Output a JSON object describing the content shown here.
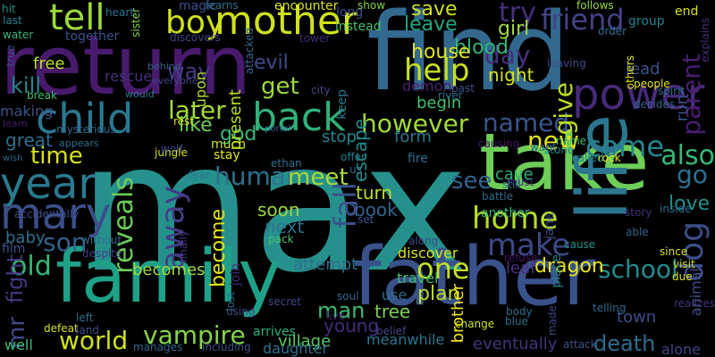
{
  "words": [
    {
      "text": "max",
      "c": "#26918c"
    },
    {
      "text": "find",
      "c": "#33698e"
    },
    {
      "text": "return",
      "c": "#481a6c"
    },
    {
      "text": "family",
      "c": "#1fa187"
    },
    {
      "text": "father",
      "c": "#3a528b"
    },
    {
      "text": "take",
      "c": "#6ece58"
    },
    {
      "text": "life",
      "c": "#2b768e"
    },
    {
      "text": "mother",
      "c": "#cfe11c"
    },
    {
      "text": "child",
      "c": "#2a788e"
    },
    {
      "text": "back",
      "c": "#30b07a"
    },
    {
      "text": "power",
      "c": "#472b7a"
    },
    {
      "text": "year",
      "c": "#2a798e"
    },
    {
      "text": "mary",
      "c": "#3c4f8a"
    },
    {
      "text": "tell",
      "c": "#9cd93b"
    },
    {
      "text": "boy",
      "c": "#cfe11c"
    },
    {
      "text": "friend",
      "c": "#414487"
    },
    {
      "text": "home",
      "c": "#b5de2b"
    },
    {
      "text": "make",
      "c": "#3e4989"
    },
    {
      "text": "dog",
      "c": "#3d4d8a"
    },
    {
      "text": "time",
      "c": "#d8e219"
    },
    {
      "text": "human",
      "c": "#2d708e"
    },
    {
      "text": "reveals",
      "c": "#6ccd5a"
    },
    {
      "text": "away",
      "c": "#433e85"
    },
    {
      "text": "son",
      "c": "#34608d"
    },
    {
      "text": "old",
      "c": "#35b779"
    },
    {
      "text": "world",
      "c": "#d0e11c"
    },
    {
      "text": "vampire",
      "c": "#86d549"
    },
    {
      "text": "named",
      "c": "#39558c"
    },
    {
      "text": "new",
      "c": "#e5e419"
    },
    {
      "text": "come",
      "c": "#25848e"
    },
    {
      "text": "also",
      "c": "#37b878"
    },
    {
      "text": "go",
      "c": "#2c718e"
    },
    {
      "text": "give",
      "c": "#bade28"
    },
    {
      "text": "get",
      "c": "#9dd93b"
    },
    {
      "text": "help",
      "c": "#c8e020"
    },
    {
      "text": "later",
      "c": "#a5db36"
    },
    {
      "text": "however",
      "c": "#a2da37"
    },
    {
      "text": "meet",
      "c": "#a8db34"
    },
    {
      "text": "fall",
      "c": "#3b518b"
    },
    {
      "text": "one",
      "c": "#c2df23"
    },
    {
      "text": "school",
      "c": "#228c8d"
    },
    {
      "text": "see",
      "c": "#32648e"
    },
    {
      "text": "parent",
      "c": "#481f70"
    },
    {
      "text": "love",
      "c": "#21918c"
    },
    {
      "text": "day",
      "c": "#472e7c"
    },
    {
      "text": "kill",
      "c": "#24868e"
    },
    {
      "text": "fight",
      "c": "#443a83"
    },
    {
      "text": "mr",
      "c": "#3f4788"
    },
    {
      "text": "become",
      "c": "#e2e418"
    },
    {
      "text": "becomes",
      "c": "#a0da39"
    },
    {
      "text": "attempt",
      "c": "#2e6e8e"
    },
    {
      "text": "turn",
      "c": "#bddf26"
    },
    {
      "text": "way",
      "c": "#433d84"
    },
    {
      "text": "god",
      "c": "#35b779"
    },
    {
      "text": "like",
      "c": "#6ccd5a"
    },
    {
      "text": "try",
      "c": "#472f7d"
    },
    {
      "text": "save",
      "c": "#cde11d"
    },
    {
      "text": "leave",
      "c": "#22a884"
    },
    {
      "text": "blood",
      "c": "#32b67a"
    },
    {
      "text": "girl",
      "c": "#a0da39"
    },
    {
      "text": "house",
      "c": "#e2e418"
    },
    {
      "text": "night",
      "c": "#d5e21a"
    },
    {
      "text": "evil",
      "c": "#3e4c8a"
    },
    {
      "text": "free",
      "c": "#c0df25"
    },
    {
      "text": "begin",
      "c": "#44bf70"
    },
    {
      "text": "demon",
      "c": "#482173"
    },
    {
      "text": "soon",
      "c": "#9dd93b"
    },
    {
      "text": "next",
      "c": "#2d718e"
    },
    {
      "text": "book",
      "c": "#33628d"
    },
    {
      "text": "man",
      "c": "#3fbc73"
    },
    {
      "text": "young",
      "c": "#472c7a"
    },
    {
      "text": "plan",
      "c": "#c0df25"
    },
    {
      "text": "brother",
      "c": "#f1e51d"
    },
    {
      "text": "village",
      "c": "#5cc863"
    },
    {
      "text": "meanwhile",
      "c": "#2a788e"
    },
    {
      "text": "eventually",
      "c": "#45337d"
    },
    {
      "text": "death",
      "c": "#2e6d8e"
    },
    {
      "text": "dragon",
      "c": "#e7e419"
    },
    {
      "text": "town",
      "c": "#3d4e8a"
    },
    {
      "text": "use",
      "c": "#2f6c8e"
    },
    {
      "text": "tree",
      "c": "#7ad151"
    },
    {
      "text": "leaf",
      "c": "#4e2d84"
    },
    {
      "text": "escape",
      "c": "#228c8d"
    },
    {
      "text": "stop",
      "c": "#24868e"
    },
    {
      "text": "form",
      "c": "#2a788e"
    },
    {
      "text": "cave",
      "c": "#29af7f"
    },
    {
      "text": "great",
      "c": "#2e6f8e"
    },
    {
      "text": "baby",
      "c": "#2d718e"
    },
    {
      "text": "rescue",
      "c": "#46327e"
    },
    {
      "text": "lead",
      "c": "#3b528b"
    },
    {
      "text": "present",
      "c": "#b8de29"
    },
    {
      "text": "upon",
      "c": "#b2dd2d"
    },
    {
      "text": "magic",
      "c": "#3b528b"
    },
    {
      "text": "heart",
      "c": "#2c728e"
    },
    {
      "text": "learns",
      "c": "#2d708e"
    },
    {
      "text": "encounter",
      "c": "#d8e219"
    },
    {
      "text": "show",
      "c": "#7fd34e"
    },
    {
      "text": "long",
      "c": "#3e4a89"
    },
    {
      "text": "instead",
      "c": "#4ac16d"
    },
    {
      "text": "follows",
      "c": "#95d840"
    },
    {
      "text": "end",
      "c": "#d5e21a"
    },
    {
      "text": "group",
      "c": "#26828e"
    },
    {
      "text": "order",
      "c": "#2d718e"
    },
    {
      "text": "explains",
      "c": "#472c7a"
    },
    {
      "text": "run",
      "c": "#3b518b"
    },
    {
      "text": "hit",
      "c": "#21918c"
    },
    {
      "text": "last",
      "c": "#25858e"
    },
    {
      "text": "water",
      "c": "#35b779"
    },
    {
      "text": "together",
      "c": "#3b528b"
    },
    {
      "text": "discovers",
      "c": "#414487"
    },
    {
      "text": "sister",
      "c": "#86d549"
    },
    {
      "text": "tower",
      "c": "#472a7a"
    },
    {
      "text": "attacked",
      "c": "#31688e"
    },
    {
      "text": "behind",
      "c": "#34608d"
    },
    {
      "text": "everyone",
      "c": "#3f4889"
    },
    {
      "text": "would",
      "c": "#2a778e"
    },
    {
      "text": "portal",
      "c": "#30688e"
    },
    {
      "text": "mysterious",
      "c": "#32658e"
    },
    {
      "text": "appears",
      "c": "#2e6e8e"
    },
    {
      "text": "wish",
      "c": "#2f6b8e"
    },
    {
      "text": "learn",
      "c": "#481b6d"
    },
    {
      "text": "making",
      "c": "#3b528b"
    },
    {
      "text": "break",
      "c": "#44bf70"
    },
    {
      "text": "true",
      "c": "#3f4889"
    },
    {
      "text": "accidentally",
      "c": "#3e4c8a"
    },
    {
      "text": "without",
      "c": "#306a8e"
    },
    {
      "text": "despite",
      "c": "#443b84"
    },
    {
      "text": "film",
      "c": "#3a548c"
    },
    {
      "text": "well",
      "c": "#40bd72"
    },
    {
      "text": "defeat",
      "c": "#d8e219"
    },
    {
      "text": "left",
      "c": "#2d718e"
    },
    {
      "text": "land",
      "c": "#3c508b"
    },
    {
      "text": "manages",
      "c": "#31678e"
    },
    {
      "text": "including",
      "c": "#3b528b"
    },
    {
      "text": "daughter",
      "c": "#2c728e"
    },
    {
      "text": "arrives",
      "c": "#29af7f"
    },
    {
      "text": "using",
      "c": "#3e4a89"
    },
    {
      "text": "secret",
      "c": "#3f4788"
    },
    {
      "text": "lost",
      "c": "#2c728e"
    },
    {
      "text": "join",
      "c": "#472d7b"
    },
    {
      "text": "city",
      "c": "#3f4788"
    },
    {
      "text": "keep",
      "c": "#2a788e"
    },
    {
      "text": "river",
      "c": "#2e6f8e"
    },
    {
      "text": "past",
      "c": "#3b528b"
    },
    {
      "text": "causing",
      "c": "#481467"
    },
    {
      "text": "offer",
      "c": "#26828e"
    },
    {
      "text": "us",
      "c": "#2c718e"
    },
    {
      "text": "ethan",
      "c": "#2d708e"
    },
    {
      "text": "much",
      "c": "#d0e11c"
    },
    {
      "text": "stay",
      "c": "#e5e419"
    },
    {
      "text": "jungle",
      "c": "#d8e219"
    },
    {
      "text": "wolf",
      "c": "#3f4889"
    },
    {
      "text": "rest",
      "c": "#d8e219"
    },
    {
      "text": "fear",
      "c": "#2c728e"
    },
    {
      "text": "finally",
      "c": "#46327e"
    },
    {
      "text": "pack",
      "c": "#4ac16d"
    },
    {
      "text": "fire",
      "c": "#2c728e"
    },
    {
      "text": "along",
      "c": "#3f4889"
    },
    {
      "text": "discover",
      "c": "#d8e219"
    },
    {
      "text": "travel",
      "c": "#3fbc73"
    },
    {
      "text": "refuse",
      "c": "#481467"
    },
    {
      "text": "battle",
      "c": "#2f6b8e"
    },
    {
      "text": "must",
      "c": "#482878"
    },
    {
      "text": "still",
      "c": "#2c718e"
    },
    {
      "text": "another",
      "c": "#35b779"
    },
    {
      "text": "jane",
      "c": "#3c4f8a"
    },
    {
      "text": "able",
      "c": "#33638d"
    },
    {
      "text": "cause",
      "c": "#21918c"
    },
    {
      "text": "inside",
      "c": "#2d708e"
    },
    {
      "text": "since",
      "c": "#d8e219"
    },
    {
      "text": "visit",
      "c": "#d0e11c"
    },
    {
      "text": "due",
      "c": "#d8e219"
    },
    {
      "text": "realizes",
      "c": "#46327e"
    },
    {
      "text": "animal",
      "c": "#3d4d8a"
    },
    {
      "text": "rock",
      "c": "#e5e419"
    },
    {
      "text": "called",
      "c": "#26828e"
    },
    {
      "text": "story",
      "c": "#472c7a"
    },
    {
      "text": "stone",
      "c": "#25858e"
    },
    {
      "text": "want",
      "c": "#306a8e"
    },
    {
      "text": "name",
      "c": "#3fbc73"
    },
    {
      "text": "people",
      "c": "#e5e419"
    },
    {
      "text": "spirit",
      "c": "#2d708e"
    },
    {
      "text": "others",
      "c": "#e5e419"
    },
    {
      "text": "leaving",
      "c": "#3e4a89"
    },
    {
      "text": "decides",
      "c": "#33638d"
    },
    {
      "text": "place",
      "c": "#25858e"
    },
    {
      "text": "attack",
      "c": "#3b528b"
    },
    {
      "text": "alone",
      "c": "#3f4788"
    },
    {
      "text": "telling",
      "c": "#2f6b8e"
    },
    {
      "text": "made",
      "c": "#3f4889"
    },
    {
      "text": "blue",
      "c": "#2c728e"
    },
    {
      "text": "body",
      "c": "#2c718e"
    },
    {
      "text": "change",
      "c": "#d0e11c"
    },
    {
      "text": "belief",
      "c": "#3f4788"
    },
    {
      "text": "live",
      "c": "#481b6d"
    },
    {
      "text": "soul",
      "c": "#31678e"
    },
    {
      "text": "set",
      "c": "#3b528b"
    }
  ]
}
